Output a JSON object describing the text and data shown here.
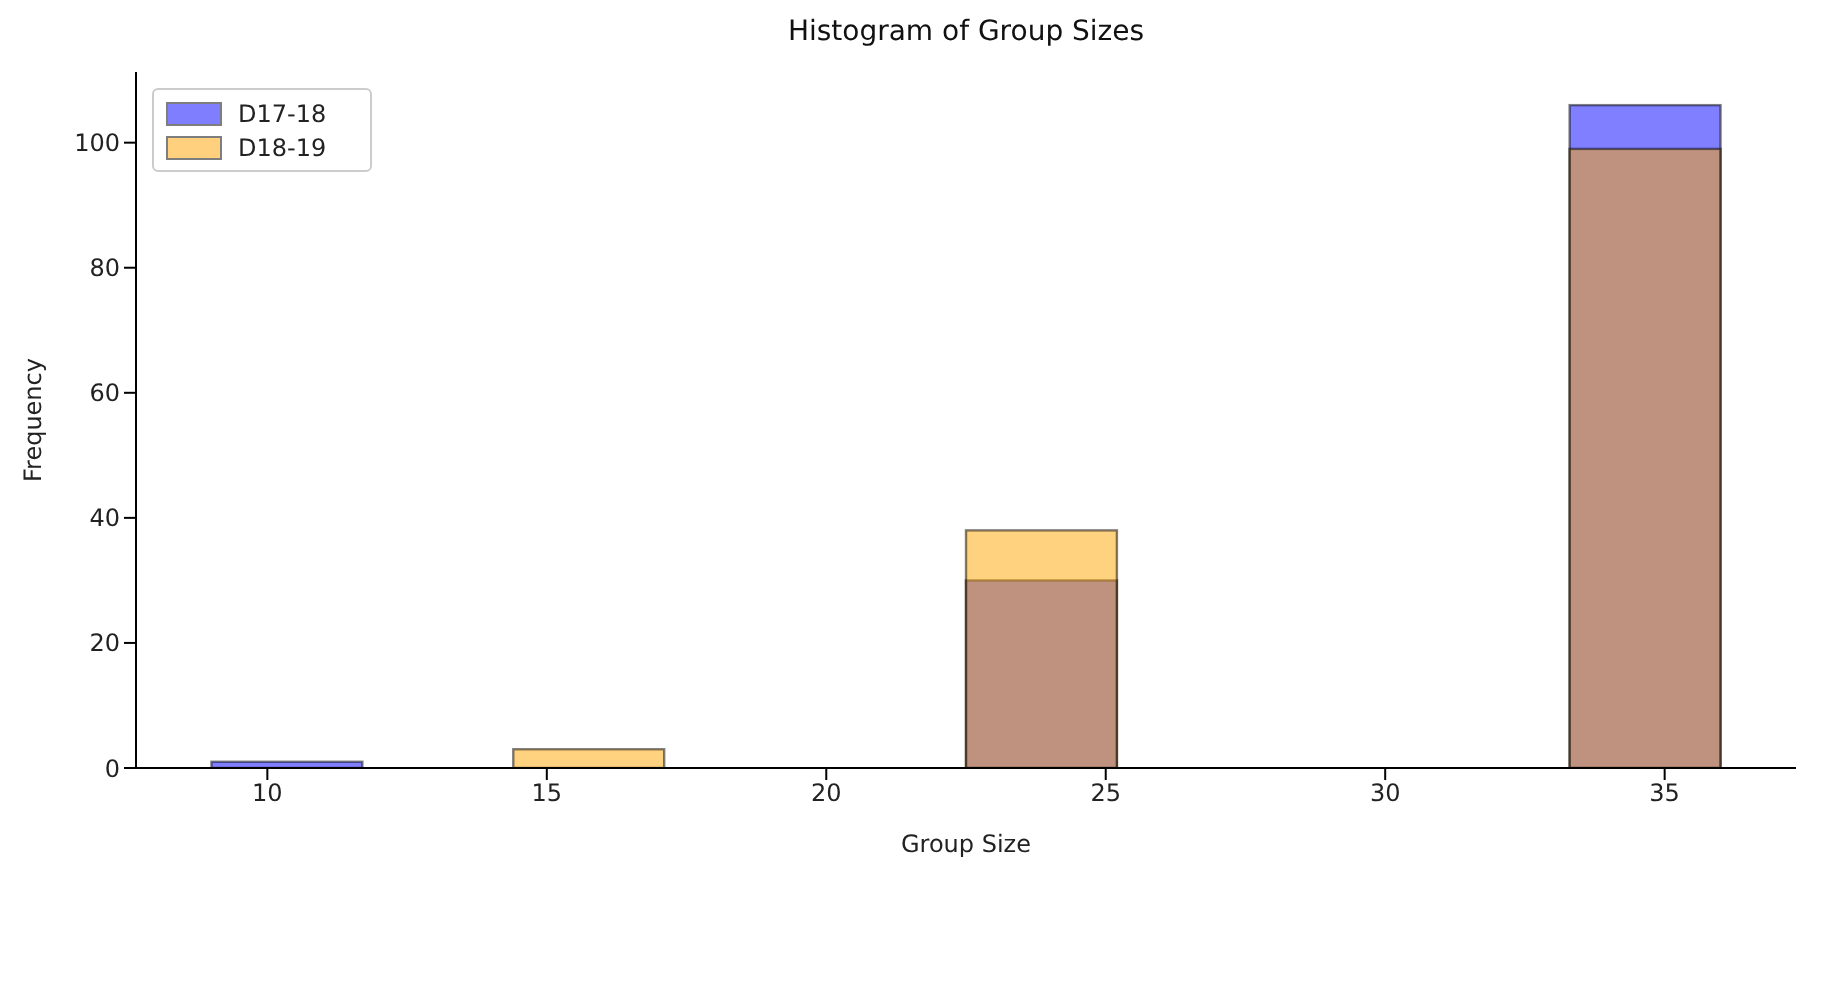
{
  "chart_data": {
    "type": "histogram",
    "title": "Histogram of Group Sizes",
    "xlabel": "Group Size",
    "ylabel": "Frequency",
    "bins": [
      9,
      11.7,
      14.4,
      17.1,
      19.8,
      22.5,
      25.2,
      27.9,
      30.6,
      33.3,
      36
    ],
    "series": [
      {
        "name": "D17-18",
        "color": "#0000ff",
        "values": [
          1,
          0,
          0,
          0,
          0,
          30,
          0,
          0,
          0,
          106
        ]
      },
      {
        "name": "D18-19",
        "color": "#ffa500",
        "values": [
          0,
          0,
          3,
          0,
          0,
          38,
          0,
          0,
          0,
          99
        ]
      }
    ],
    "xlim": [
      7.65,
      37.35
    ],
    "xticks": [
      10,
      15,
      20,
      25,
      30,
      35
    ],
    "ylim": [
      0,
      111.3
    ],
    "yticks": [
      0,
      20,
      40,
      60,
      80,
      100
    ],
    "grid": false,
    "legend": "top left"
  }
}
